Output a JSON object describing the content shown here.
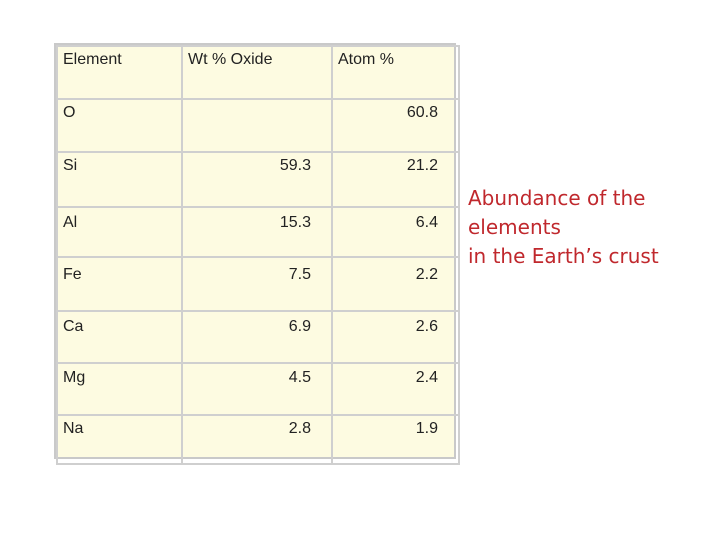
{
  "table": {
    "headers": [
      "Element",
      "Wt % Oxide",
      "Atom %"
    ],
    "rows": [
      {
        "element": "O",
        "wt_oxide": "",
        "atom": "60.8"
      },
      {
        "element": "Si",
        "wt_oxide": "59.3",
        "atom": "21.2"
      },
      {
        "element": "Al",
        "wt_oxide": "15.3",
        "atom": "6.4"
      },
      {
        "element": "Fe",
        "wt_oxide": "7.5",
        "atom": "2.2"
      },
      {
        "element": "Ca",
        "wt_oxide": "6.9",
        "atom": "2.6"
      },
      {
        "element": "Mg",
        "wt_oxide": "4.5",
        "atom": "2.4"
      },
      {
        "element": "Na",
        "wt_oxide": "2.8",
        "atom": "1.9"
      }
    ]
  },
  "caption": {
    "line1": "Abundance of the",
    "line2": "elements",
    "line3": "in the Earth’s crust"
  },
  "colors": {
    "table_bg": "#fdfbe1",
    "caption_text": "#c0282d"
  }
}
